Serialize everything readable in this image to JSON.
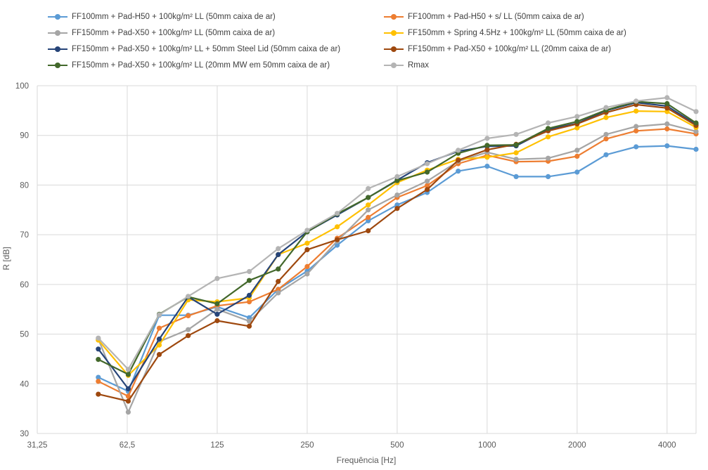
{
  "chart_data": {
    "type": "line",
    "title": "",
    "xlabel": "Frequência [Hz]",
    "ylabel": "R [dB]",
    "xscale": "log2",
    "xlim": [
      31.25,
      5000
    ],
    "ylim": [
      30,
      100
    ],
    "yticks": [
      30,
      40,
      50,
      60,
      70,
      80,
      90,
      100
    ],
    "xticks": [
      31.25,
      62.5,
      125,
      250,
      500,
      1000,
      2000,
      4000
    ],
    "xtick_labels": [
      "31,25",
      "62,5",
      "125",
      "250",
      "500",
      "1000",
      "2000",
      "4000"
    ],
    "grid": true,
    "legend_position": "top",
    "x": [
      50,
      63,
      80,
      100,
      125,
      160,
      200,
      250,
      315,
      400,
      500,
      630,
      800,
      1000,
      1250,
      1600,
      2000,
      2500,
      3150,
      4000,
      5000
    ],
    "series": [
      {
        "name": "FF100mm + Pad-H50 + 100kg/m² LL  (50mm caixa de ar)",
        "color": "#5B9BD5",
        "values": [
          41.3,
          38.5,
          53.8,
          53.8,
          55.5,
          53.3,
          59.0,
          62.7,
          67.9,
          72.8,
          76.0,
          78.5,
          82.8,
          83.8,
          81.7,
          81.7,
          82.6,
          86.1,
          87.7,
          87.9,
          87.2
        ]
      },
      {
        "name": "FF100mm + Pad-H50 + s/ LL  (50mm caixa de ar)",
        "color": "#ED7D31",
        "values": [
          40.5,
          37.5,
          51.2,
          53.7,
          55.7,
          56.5,
          59.0,
          63.6,
          69.3,
          73.5,
          77.5,
          79.9,
          84.3,
          86.0,
          84.7,
          84.8,
          85.8,
          89.3,
          90.9,
          91.3,
          90.3
        ]
      },
      {
        "name": "FF150mm + Pad-X50 + 100kg/m² LL  (50mm caixa de ar)",
        "color": "#A5A5A5",
        "values": [
          49.0,
          34.3,
          48.5,
          50.9,
          55.0,
          52.6,
          58.3,
          62.1,
          68.7,
          75.0,
          78.0,
          80.8,
          84.8,
          86.6,
          85.2,
          85.4,
          87.0,
          90.2,
          91.8,
          92.3,
          90.8
        ]
      },
      {
        "name": "FF150mm + Spring 4.5Hz + 100kg/m² LL (50mm caixa de ar)",
        "color": "#FFC000",
        "values": [
          48.8,
          41.7,
          47.8,
          56.9,
          56.5,
          57.3,
          66.0,
          68.3,
          71.6,
          76.0,
          80.5,
          83.0,
          85.2,
          85.6,
          86.5,
          89.7,
          91.5,
          93.6,
          94.9,
          94.8,
          91.6
        ]
      },
      {
        "name": "FF150mm + Pad-X50 + 100kg/m² LL + 50mm Steel Lid  (50mm caixa de ar)",
        "color": "#264478",
        "values": [
          47.0,
          39.0,
          49.0,
          57.5,
          54.0,
          57.8,
          66.0,
          70.6,
          74.0,
          77.5,
          81.0,
          84.5,
          86.8,
          87.8,
          87.9,
          91.2,
          92.4,
          95.0,
          96.6,
          95.9,
          92.2
        ]
      },
      {
        "name": "FF150mm + Pad-X50 + 100kg/m² LL (20mm caixa de ar)",
        "color": "#9E480E",
        "values": [
          37.9,
          36.5,
          45.9,
          49.7,
          52.7,
          51.6,
          60.6,
          67.0,
          69.0,
          70.8,
          75.3,
          79.1,
          85.0,
          87.1,
          88.2,
          90.9,
          92.3,
          94.6,
          96.2,
          95.5,
          92.0
        ]
      },
      {
        "name": "FF150mm + Pad-X50 + 100kg/m² LL (20mm MW em 50mm caixa de ar)",
        "color": "#43682B",
        "values": [
          44.9,
          41.9,
          54.0,
          57.5,
          56.1,
          60.8,
          63.1,
          70.6,
          74.2,
          77.5,
          80.9,
          82.6,
          86.4,
          88.0,
          88.1,
          91.4,
          92.8,
          95.1,
          96.8,
          96.4,
          92.5
        ]
      },
      {
        "name": "Rmax",
        "color": "#B4B4B4",
        "values": [
          49.2,
          42.9,
          53.9,
          57.6,
          61.2,
          62.6,
          67.2,
          70.9,
          74.3,
          79.3,
          81.7,
          84.3,
          87.0,
          89.4,
          90.2,
          92.5,
          93.8,
          95.6,
          96.9,
          97.6,
          94.8
        ]
      }
    ]
  }
}
